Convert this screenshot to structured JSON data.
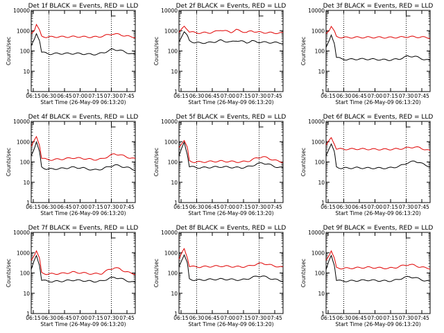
{
  "colors": {
    "events": "#000000",
    "lld": "#e00000",
    "axes": "#000000",
    "background": "#ffffff"
  },
  "chart_data": [
    {
      "type": "line",
      "title": "Det 1f BLACK = Events, RED = LLD",
      "xlabel": "Start Time (26-May-09 06:13:20)",
      "ylabel": "Counts/sec",
      "y_scale": "log",
      "ylim": [
        1,
        10000
      ],
      "xlim": [
        "06:13",
        "07:53"
      ],
      "x_ticks": [
        "06:15",
        "06:30",
        "06:45",
        "07:00",
        "07:15",
        "07:30",
        "07:45"
      ],
      "y_ticks": [
        "1",
        "10",
        "100",
        "1000",
        "10000"
      ],
      "dotted_verticals": [
        "06:30",
        "07:30"
      ],
      "grid": false,
      "legend": "none",
      "x": [
        0,
        3,
        5,
        8,
        10,
        15,
        18,
        25,
        35,
        45,
        55,
        60,
        65,
        70,
        78,
        85,
        90,
        95,
        100
      ],
      "series": [
        {
          "name": "Events",
          "color": "#000000",
          "values": [
            180,
            350,
            700,
            350,
            90,
            75,
            72,
            75,
            75,
            75,
            70,
            68,
            72,
            85,
            120,
            110,
            90,
            75,
            65
          ]
        },
        {
          "name": "LLD",
          "color": "#e00000",
          "values": [
            700,
            1100,
            2100,
            1000,
            520,
            490,
            490,
            500,
            500,
            510,
            490,
            490,
            500,
            560,
            700,
            650,
            560,
            510,
            480
          ]
        }
      ]
    },
    {
      "type": "line",
      "title": "Det 2f BLACK = Events, RED = LLD",
      "xlabel": "Start Time (26-May-09 06:13:20)",
      "ylabel": "Counts/sec",
      "y_scale": "log",
      "ylim": [
        1,
        10000
      ],
      "xlim": [
        "06:13",
        "07:53"
      ],
      "x_ticks": [
        "06:15",
        "06:30",
        "06:45",
        "07:00",
        "07:15",
        "07:30",
        "07:45"
      ],
      "y_ticks": [
        "1",
        "10",
        "100",
        "1000",
        "10000"
      ],
      "dotted_verticals": [
        "06:30",
        "07:30"
      ],
      "grid": false,
      "legend": "none",
      "x": [
        0,
        3,
        5,
        8,
        10,
        15,
        20,
        30,
        35,
        40,
        45,
        50,
        55,
        60,
        65,
        70,
        75,
        80,
        90,
        100
      ],
      "series": [
        {
          "name": "Events",
          "color": "#000000",
          "values": [
            280,
            600,
            900,
            550,
            320,
            260,
            250,
            260,
            290,
            330,
            300,
            270,
            330,
            300,
            260,
            310,
            280,
            270,
            260,
            250
          ]
        },
        {
          "name": "LLD",
          "color": "#e00000",
          "values": [
            850,
            1200,
            1600,
            1200,
            900,
            800,
            780,
            800,
            900,
            1100,
            950,
            850,
            1100,
            950,
            800,
            1000,
            850,
            820,
            780,
            760
          ]
        }
      ]
    },
    {
      "type": "line",
      "title": "Det 3f BLACK = Events, RED = LLD",
      "xlabel": "Start Time (26-May-09 06:13:20)",
      "ylabel": "Counts/sec",
      "y_scale": "log",
      "ylim": [
        1,
        10000
      ],
      "xlim": [
        "06:13",
        "07:53"
      ],
      "x_ticks": [
        "06:15",
        "06:30",
        "06:45",
        "07:00",
        "07:15",
        "07:30",
        "07:45"
      ],
      "y_ticks": [
        "1",
        "10",
        "100",
        "1000",
        "10000"
      ],
      "dotted_verticals": [
        "06:30",
        "07:30"
      ],
      "grid": false,
      "legend": "none",
      "x": [
        0,
        3,
        5,
        8,
        10,
        15,
        20,
        30,
        40,
        50,
        60,
        70,
        78,
        85,
        90,
        95,
        100
      ],
      "series": [
        {
          "name": "Events",
          "color": "#000000",
          "values": [
            150,
            300,
            600,
            250,
            50,
            40,
            38,
            40,
            40,
            38,
            36,
            40,
            55,
            55,
            45,
            38,
            33
          ]
        },
        {
          "name": "LLD",
          "color": "#e00000",
          "values": [
            700,
            1100,
            1700,
            900,
            500,
            470,
            460,
            470,
            470,
            470,
            460,
            470,
            500,
            500,
            480,
            470,
            450
          ]
        }
      ]
    },
    {
      "type": "line",
      "title": "Det 4f BLACK = Events, RED = LLD",
      "xlabel": "Start Time (26-May-09 06:13:20)",
      "ylabel": "Counts/sec",
      "y_scale": "log",
      "ylim": [
        1,
        10000
      ],
      "xlim": [
        "06:13",
        "07:53"
      ],
      "x_ticks": [
        "06:15",
        "06:30",
        "06:45",
        "07:00",
        "07:15",
        "07:30",
        "07:45"
      ],
      "y_ticks": [
        "1",
        "10",
        "100",
        "1000",
        "10000"
      ],
      "dotted_verticals": [
        "06:30",
        "07:30"
      ],
      "grid": false,
      "legend": "none",
      "x": [
        0,
        3,
        5,
        8,
        10,
        15,
        20,
        30,
        40,
        50,
        60,
        68,
        75,
        80,
        85,
        90,
        95,
        100
      ],
      "series": [
        {
          "name": "Events",
          "color": "#000000",
          "values": [
            200,
            500,
            1000,
            300,
            55,
            45,
            45,
            48,
            55,
            50,
            40,
            45,
            60,
            70,
            65,
            55,
            50,
            40
          ]
        },
        {
          "name": "LLD",
          "color": "#e00000",
          "values": [
            600,
            1100,
            1700,
            700,
            160,
            130,
            130,
            140,
            160,
            150,
            130,
            140,
            200,
            250,
            230,
            190,
            160,
            140
          ]
        }
      ]
    },
    {
      "type": "line",
      "title": "Det 5f BLACK = Events, RED = LLD",
      "xlabel": "Start Time (26-May-09 06:13:20)",
      "ylabel": "Counts/sec",
      "y_scale": "log",
      "ylim": [
        1,
        10000
      ],
      "xlim": [
        "06:13",
        "07:53"
      ],
      "x_ticks": [
        "06:15",
        "06:30",
        "06:45",
        "07:00",
        "07:15",
        "07:30",
        "07:45"
      ],
      "y_ticks": [
        "1",
        "10",
        "100",
        "1000",
        "10000"
      ],
      "dotted_verticals": [
        "06:30",
        "07:30"
      ],
      "grid": false,
      "legend": "none",
      "x": [
        0,
        3,
        5,
        8,
        10,
        15,
        20,
        30,
        40,
        50,
        60,
        68,
        75,
        80,
        85,
        90,
        95,
        100
      ],
      "series": [
        {
          "name": "Events",
          "color": "#000000",
          "values": [
            200,
            500,
            900,
            250,
            60,
            55,
            52,
            55,
            58,
            55,
            52,
            60,
            80,
            90,
            80,
            65,
            55,
            50
          ]
        },
        {
          "name": "LLD",
          "color": "#e00000",
          "values": [
            500,
            900,
            1200,
            500,
            110,
            100,
            100,
            105,
            110,
            105,
            100,
            115,
            160,
            180,
            160,
            130,
            110,
            100
          ]
        }
      ]
    },
    {
      "type": "line",
      "title": "Det 6f BLACK = Events, RED = LLD",
      "xlabel": "Start Time (26-May-09 06:13:20)",
      "ylabel": "Counts/sec",
      "y_scale": "log",
      "ylim": [
        1,
        10000
      ],
      "xlim": [
        "06:13",
        "07:53"
      ],
      "x_ticks": [
        "06:15",
        "06:30",
        "06:45",
        "07:00",
        "07:15",
        "07:30",
        "07:45"
      ],
      "y_ticks": [
        "1",
        "10",
        "100",
        "1000",
        "10000"
      ],
      "dotted_verticals": [
        "06:30",
        "07:30"
      ],
      "grid": false,
      "legend": "none",
      "x": [
        0,
        3,
        5,
        8,
        10,
        15,
        20,
        30,
        40,
        50,
        60,
        70,
        78,
        85,
        90,
        95,
        100
      ],
      "series": [
        {
          "name": "Events",
          "color": "#000000",
          "values": [
            200,
            500,
            800,
            300,
            55,
            50,
            50,
            52,
            50,
            50,
            50,
            60,
            90,
            110,
            95,
            70,
            60
          ]
        },
        {
          "name": "LLD",
          "color": "#e00000",
          "values": [
            700,
            1100,
            1500,
            800,
            450,
            430,
            430,
            440,
            430,
            420,
            420,
            440,
            500,
            550,
            500,
            420,
            350
          ]
        }
      ]
    },
    {
      "type": "line",
      "title": "Det 7f BLACK = Events, RED = LLD",
      "xlabel": "Start Time (26-May-09 06:13:20)",
      "ylabel": "Counts/sec",
      "y_scale": "log",
      "ylim": [
        1,
        10000
      ],
      "xlim": [
        "06:13",
        "07:53"
      ],
      "x_ticks": [
        "06:15",
        "06:30",
        "06:45",
        "07:00",
        "07:15",
        "07:30",
        "07:45"
      ],
      "y_ticks": [
        "1",
        "10",
        "100",
        "1000",
        "10000"
      ],
      "dotted_verticals": [
        "06:30",
        "07:30"
      ],
      "grid": false,
      "legend": "none",
      "x": [
        0,
        3,
        5,
        8,
        10,
        15,
        20,
        30,
        40,
        50,
        60,
        68,
        75,
        80,
        85,
        90,
        95,
        100
      ],
      "series": [
        {
          "name": "Events",
          "color": "#000000",
          "values": [
            150,
            400,
            700,
            250,
            45,
            40,
            38,
            40,
            45,
            42,
            38,
            40,
            55,
            60,
            55,
            45,
            38,
            33
          ]
        },
        {
          "name": "LLD",
          "color": "#e00000",
          "values": [
            400,
            800,
            1300,
            500,
            100,
            90,
            90,
            95,
            110,
            100,
            90,
            95,
            150,
            180,
            160,
            120,
            100,
            90
          ]
        }
      ]
    },
    {
      "type": "line",
      "title": "Det 8f BLACK = Events, RED = LLD",
      "xlabel": "Start Time (26-May-09 06:13:20)",
      "ylabel": "Counts/sec",
      "y_scale": "log",
      "ylim": [
        1,
        10000
      ],
      "xlim": [
        "06:13",
        "07:53"
      ],
      "x_ticks": [
        "06:15",
        "06:30",
        "06:45",
        "07:00",
        "07:15",
        "07:30",
        "07:45"
      ],
      "y_ticks": [
        "1",
        "10",
        "100",
        "1000",
        "10000"
      ],
      "dotted_verticals": [
        "06:30",
        "07:30"
      ],
      "grid": false,
      "legend": "none",
      "x": [
        0,
        3,
        5,
        8,
        10,
        15,
        20,
        30,
        40,
        50,
        60,
        68,
        75,
        80,
        85,
        90,
        95,
        100
      ],
      "series": [
        {
          "name": "Events",
          "color": "#000000",
          "values": [
            200,
            500,
            800,
            300,
            50,
            45,
            45,
            48,
            50,
            48,
            45,
            55,
            70,
            70,
            60,
            50,
            45,
            40
          ]
        },
        {
          "name": "LLD",
          "color": "#e00000",
          "values": [
            500,
            1000,
            1500,
            600,
            220,
            200,
            200,
            210,
            220,
            210,
            200,
            220,
            280,
            300,
            270,
            230,
            210,
            190
          ]
        }
      ]
    },
    {
      "type": "line",
      "title": "Det 9f BLACK = Events, RED = LLD",
      "xlabel": "Start Time (26-May-09 06:13:20)",
      "ylabel": "Counts/sec",
      "y_scale": "log",
      "ylim": [
        1,
        10000
      ],
      "xlim": [
        "06:13",
        "07:53"
      ],
      "x_ticks": [
        "06:15",
        "06:30",
        "06:45",
        "07:00",
        "07:15",
        "07:30",
        "07:45"
      ],
      "y_ticks": [
        "1",
        "10",
        "100",
        "1000",
        "10000"
      ],
      "dotted_verticals": [
        "06:30",
        "07:30"
      ],
      "grid": false,
      "legend": "none",
      "x": [
        0,
        3,
        5,
        8,
        10,
        15,
        20,
        30,
        40,
        50,
        60,
        68,
        75,
        80,
        85,
        90,
        95,
        100
      ],
      "series": [
        {
          "name": "Events",
          "color": "#000000",
          "values": [
            150,
            400,
            700,
            250,
            45,
            40,
            40,
            42,
            45,
            42,
            40,
            45,
            60,
            65,
            60,
            50,
            42,
            38
          ]
        },
        {
          "name": "LLD",
          "color": "#e00000",
          "values": [
            400,
            800,
            1300,
            500,
            180,
            170,
            170,
            180,
            190,
            180,
            170,
            190,
            240,
            260,
            240,
            200,
            180,
            170
          ]
        }
      ]
    }
  ]
}
